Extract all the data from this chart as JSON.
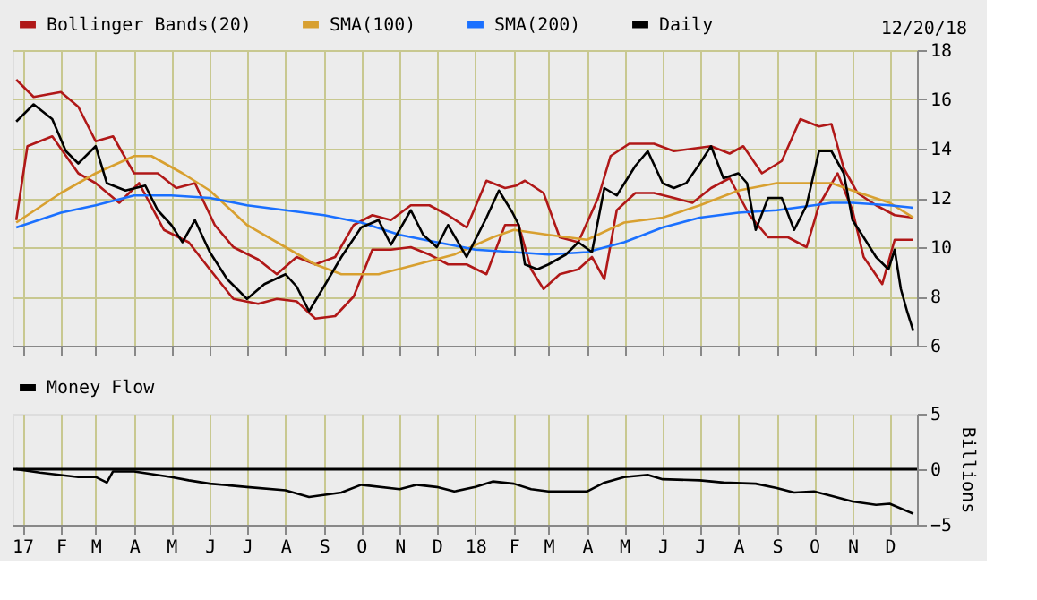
{
  "chart_data": [
    {
      "type": "line",
      "annotations": [
        "12/20/18"
      ],
      "legend": "top",
      "grid": true,
      "tick_labels": "y",
      "xlim": [
        "2016-12-24",
        "2018-12-23"
      ],
      "ylim": [
        6,
        18
      ],
      "yticks": [
        6,
        8,
        10,
        12,
        14,
        16,
        18
      ],
      "xticks": [
        {
          "value": "2017-01-01",
          "label": null
        },
        {
          "value": "2017-02-01",
          "label": null
        },
        {
          "value": "2017-03-01",
          "label": null
        },
        {
          "value": "2017-04-01",
          "label": null
        },
        {
          "value": "2017-05-01",
          "label": null
        },
        {
          "value": "2017-06-01",
          "label": null
        },
        {
          "value": "2017-07-01",
          "label": null
        },
        {
          "value": "2017-08-01",
          "label": null
        },
        {
          "value": "2017-09-01",
          "label": null
        },
        {
          "value": "2017-10-01",
          "label": null
        },
        {
          "value": "2017-11-01",
          "label": null
        },
        {
          "value": "2017-12-01",
          "label": null
        },
        {
          "value": "2018-01-01",
          "label": null
        },
        {
          "value": "2018-02-01",
          "label": null
        },
        {
          "value": "2018-03-01",
          "label": null
        },
        {
          "value": "2018-04-01",
          "label": null
        },
        {
          "value": "2018-05-01",
          "label": null
        },
        {
          "value": "2018-06-01",
          "label": null
        },
        {
          "value": "2018-07-01",
          "label": null
        },
        {
          "value": "2018-08-01",
          "label": null
        },
        {
          "value": "2018-09-01",
          "label": null
        },
        {
          "value": "2018-10-01",
          "label": null
        },
        {
          "value": "2018-11-01",
          "label": null
        },
        {
          "value": "2018-12-01",
          "label": null
        }
      ],
      "series": [
        {
          "name": "Bollinger Bands(20)",
          "color": "#b01818",
          "x": [
            "2016-12-27",
            "2017-01-10",
            "2017-02-01",
            "2017-02-15",
            "2017-03-01",
            "2017-03-15",
            "2017-04-01",
            "2017-04-20",
            "2017-05-05",
            "2017-05-20",
            "2017-06-05",
            "2017-06-20",
            "2017-07-10",
            "2017-07-25",
            "2017-08-10",
            "2017-08-25",
            "2017-09-10",
            "2017-09-25",
            "2017-10-10",
            "2017-10-25",
            "2017-11-10",
            "2017-11-25",
            "2017-12-10",
            "2017-12-25",
            "2018-01-10",
            "2018-01-25",
            "2018-02-03",
            "2018-02-10",
            "2018-02-25",
            "2018-03-10",
            "2018-03-25",
            "2018-04-10",
            "2018-04-20",
            "2018-05-05",
            "2018-05-25",
            "2018-06-10",
            "2018-06-25",
            "2018-07-10",
            "2018-07-25",
            "2018-08-05",
            "2018-08-20",
            "2018-09-05",
            "2018-09-20",
            "2018-10-05",
            "2018-10-15",
            "2018-10-25",
            "2018-11-05",
            "2018-11-20",
            "2018-12-05",
            "2018-12-20"
          ],
          "values": [
            16.8,
            16.1,
            16.3,
            15.7,
            14.3,
            14.5,
            13.0,
            13.0,
            12.4,
            12.6,
            10.9,
            10.0,
            9.5,
            8.9,
            9.6,
            9.3,
            9.6,
            10.9,
            11.3,
            11.1,
            11.7,
            11.7,
            11.3,
            10.8,
            12.7,
            12.4,
            12.5,
            12.7,
            12.2,
            10.4,
            10.2,
            12.0,
            13.7,
            14.2,
            14.2,
            13.9,
            14.0,
            14.1,
            13.8,
            14.1,
            13.0,
            13.5,
            15.2,
            14.9,
            15.0,
            13.2,
            12.2,
            11.7,
            11.3,
            11.2
          ]
        },
        {
          "color": "#b01818",
          "x": [
            "2016-12-27",
            "2017-01-05",
            "2017-01-25",
            "2017-02-15",
            "2017-03-01",
            "2017-03-20",
            "2017-04-05",
            "2017-04-25",
            "2017-05-15",
            "2017-06-01",
            "2017-06-20",
            "2017-07-10",
            "2017-07-25",
            "2017-08-10",
            "2017-08-25",
            "2017-09-10",
            "2017-09-25",
            "2017-10-10",
            "2017-10-25",
            "2017-11-10",
            "2017-11-25",
            "2017-12-10",
            "2017-12-25",
            "2018-01-10",
            "2018-01-25",
            "2018-02-05",
            "2018-02-15",
            "2018-02-25",
            "2018-03-10",
            "2018-03-25",
            "2018-04-05",
            "2018-04-15",
            "2018-04-25",
            "2018-05-10",
            "2018-05-25",
            "2018-06-10",
            "2018-06-25",
            "2018-07-10",
            "2018-07-25",
            "2018-08-10",
            "2018-08-25",
            "2018-09-10",
            "2018-09-25",
            "2018-10-05",
            "2018-10-20",
            "2018-11-01",
            "2018-11-10",
            "2018-11-25",
            "2018-12-05",
            "2018-12-20"
          ],
          "values": [
            11.1,
            14.1,
            14.5,
            13.0,
            12.6,
            11.8,
            12.6,
            10.7,
            10.2,
            9.1,
            7.9,
            7.7,
            7.9,
            7.8,
            7.1,
            7.2,
            8.0,
            9.9,
            9.9,
            10.0,
            9.7,
            9.3,
            9.3,
            8.9,
            10.9,
            10.9,
            9.1,
            8.3,
            8.9,
            9.1,
            9.6,
            8.7,
            11.5,
            12.2,
            12.2,
            12.0,
            11.8,
            12.4,
            12.8,
            11.3,
            10.4,
            10.4,
            10.0,
            11.7,
            13.0,
            11.5,
            9.6,
            8.5,
            10.3,
            10.3
          ]
        },
        {
          "name": "SMA(100)",
          "color": "#d8a030",
          "x": [
            "2016-12-27",
            "2017-02-01",
            "2017-03-01",
            "2017-04-01",
            "2017-04-15",
            "2017-05-10",
            "2017-06-01",
            "2017-07-01",
            "2017-08-01",
            "2017-08-25",
            "2017-09-15",
            "2017-10-15",
            "2017-11-15",
            "2017-12-15",
            "2018-01-15",
            "2018-02-01",
            "2018-03-01",
            "2018-04-01",
            "2018-05-01",
            "2018-06-01",
            "2018-07-01",
            "2018-08-01",
            "2018-09-01",
            "2018-10-01",
            "2018-10-15",
            "2018-11-01",
            "2018-12-01",
            "2018-12-20"
          ],
          "values": [
            11.0,
            12.2,
            13.0,
            13.7,
            13.7,
            13.0,
            12.3,
            10.9,
            10.0,
            9.3,
            8.9,
            8.9,
            9.3,
            9.7,
            10.4,
            10.7,
            10.5,
            10.3,
            11.0,
            11.2,
            11.7,
            12.3,
            12.6,
            12.6,
            12.6,
            12.3,
            11.8,
            11.2
          ]
        },
        {
          "name": "SMA(200)",
          "color": "#1a70ff",
          "x": [
            "2016-12-27",
            "2017-02-01",
            "2017-03-01",
            "2017-04-01",
            "2017-05-01",
            "2017-06-01",
            "2017-07-01",
            "2017-08-01",
            "2017-09-01",
            "2017-10-01",
            "2017-11-01",
            "2017-12-01",
            "2018-01-01",
            "2018-02-01",
            "2018-03-01",
            "2018-04-01",
            "2018-05-01",
            "2018-06-01",
            "2018-07-01",
            "2018-08-01",
            "2018-09-01",
            "2018-10-01",
            "2018-10-15",
            "2018-11-01",
            "2018-12-01",
            "2018-12-20"
          ],
          "values": [
            10.8,
            11.4,
            11.7,
            12.1,
            12.1,
            12.0,
            11.7,
            11.5,
            11.3,
            11.0,
            10.5,
            10.2,
            9.9,
            9.8,
            9.7,
            9.8,
            10.2,
            10.8,
            11.2,
            11.4,
            11.5,
            11.7,
            11.8,
            11.8,
            11.7,
            11.6
          ]
        },
        {
          "name": "Daily",
          "color": "#000000",
          "x": [
            "2016-12-27",
            "2017-01-10",
            "2017-01-25",
            "2017-02-05",
            "2017-02-15",
            "2017-03-01",
            "2017-03-10",
            "2017-03-25",
            "2017-04-10",
            "2017-04-20",
            "2017-05-01",
            "2017-05-10",
            "2017-05-20",
            "2017-06-01",
            "2017-06-15",
            "2017-07-01",
            "2017-07-15",
            "2017-08-01",
            "2017-08-10",
            "2017-08-20",
            "2017-09-01",
            "2017-09-15",
            "2017-10-01",
            "2017-10-15",
            "2017-10-25",
            "2017-11-10",
            "2017-11-20",
            "2017-12-01",
            "2017-12-10",
            "2017-12-25",
            "2018-01-10",
            "2018-01-20",
            "2018-01-31",
            "2018-02-05",
            "2018-02-10",
            "2018-02-20",
            "2018-03-01",
            "2018-03-15",
            "2018-03-25",
            "2018-04-05",
            "2018-04-15",
            "2018-04-25",
            "2018-05-10",
            "2018-05-20",
            "2018-06-01",
            "2018-06-10",
            "2018-06-20",
            "2018-07-01",
            "2018-07-10",
            "2018-07-20",
            "2018-08-01",
            "2018-08-08",
            "2018-08-15",
            "2018-08-25",
            "2018-09-05",
            "2018-09-15",
            "2018-09-25",
            "2018-10-05",
            "2018-10-15",
            "2018-10-25",
            "2018-11-01",
            "2018-11-10",
            "2018-11-20",
            "2018-11-30",
            "2018-12-05",
            "2018-12-10",
            "2018-12-15",
            "2018-12-20"
          ],
          "values": [
            15.1,
            15.8,
            15.2,
            13.9,
            13.4,
            14.1,
            12.6,
            12.3,
            12.5,
            11.5,
            10.9,
            10.2,
            11.1,
            9.8,
            8.7,
            7.9,
            8.5,
            8.9,
            8.4,
            7.4,
            8.4,
            9.6,
            10.8,
            11.1,
            10.1,
            11.5,
            10.5,
            10.0,
            10.9,
            9.6,
            11.2,
            12.3,
            11.4,
            10.9,
            9.3,
            9.1,
            9.3,
            9.7,
            10.2,
            9.8,
            12.4,
            12.1,
            13.3,
            13.9,
            12.6,
            12.4,
            12.6,
            13.4,
            14.1,
            12.8,
            13.0,
            12.6,
            10.7,
            12.0,
            12.0,
            10.7,
            11.7,
            13.9,
            13.9,
            13.0,
            11.1,
            10.4,
            9.6,
            9.1,
            9.9,
            8.3,
            7.4,
            6.6
          ]
        }
      ]
    },
    {
      "type": "line",
      "ylabel": "Billions",
      "legend": "top",
      "grid": "x",
      "xlim": [
        "2016-12-24",
        "2018-12-23"
      ],
      "ylim": [
        -5,
        5
      ],
      "yticks": [
        -5,
        0,
        5
      ],
      "ref_lines": [
        {
          "axis": "y",
          "value": 0,
          "color": "#000000"
        }
      ],
      "xticks": [
        {
          "value": "2017-01-01",
          "label": "17"
        },
        {
          "value": "2017-02-01",
          "label": "F"
        },
        {
          "value": "2017-03-01",
          "label": "M"
        },
        {
          "value": "2017-04-01",
          "label": "A"
        },
        {
          "value": "2017-05-01",
          "label": "M"
        },
        {
          "value": "2017-06-01",
          "label": "J"
        },
        {
          "value": "2017-07-01",
          "label": "J"
        },
        {
          "value": "2017-08-01",
          "label": "A"
        },
        {
          "value": "2017-09-01",
          "label": "S"
        },
        {
          "value": "2017-10-01",
          "label": "O"
        },
        {
          "value": "2017-11-01",
          "label": "N"
        },
        {
          "value": "2017-12-01",
          "label": "D"
        },
        {
          "value": "2018-01-01",
          "label": "18"
        },
        {
          "value": "2018-02-01",
          "label": "F"
        },
        {
          "value": "2018-03-01",
          "label": "M"
        },
        {
          "value": "2018-04-01",
          "label": "A"
        },
        {
          "value": "2018-05-01",
          "label": "M"
        },
        {
          "value": "2018-06-01",
          "label": "J"
        },
        {
          "value": "2018-07-01",
          "label": "J"
        },
        {
          "value": "2018-08-01",
          "label": "A"
        },
        {
          "value": "2018-09-01",
          "label": "S"
        },
        {
          "value": "2018-10-01",
          "label": "O"
        },
        {
          "value": "2018-11-01",
          "label": "N"
        },
        {
          "value": "2018-12-01",
          "label": "D"
        }
      ],
      "series": [
        {
          "name": "Money Flow",
          "color": "#000000",
          "x": [
            "2016-12-27",
            "2017-01-15",
            "2017-02-15",
            "2017-03-01",
            "2017-03-10",
            "2017-03-15",
            "2017-04-01",
            "2017-05-01",
            "2017-05-15",
            "2017-06-01",
            "2017-07-01",
            "2017-08-01",
            "2017-08-20",
            "2017-09-15",
            "2017-10-01",
            "2017-11-01",
            "2017-11-15",
            "2017-12-01",
            "2017-12-15",
            "2018-01-01",
            "2018-01-15",
            "2018-02-01",
            "2018-02-15",
            "2018-03-01",
            "2018-04-01",
            "2018-04-15",
            "2018-05-01",
            "2018-05-20",
            "2018-06-01",
            "2018-07-01",
            "2018-07-20",
            "2018-08-15",
            "2018-09-01",
            "2018-09-15",
            "2018-10-01",
            "2018-10-15",
            "2018-11-01",
            "2018-11-20",
            "2018-12-01",
            "2018-12-20"
          ],
          "values": [
            0,
            -0.3,
            -0.7,
            -0.7,
            -1.2,
            -0.2,
            -0.2,
            -0.7,
            -1.0,
            -1.3,
            -1.6,
            -1.9,
            -2.5,
            -2.1,
            -1.4,
            -1.8,
            -1.4,
            -1.6,
            -2.0,
            -1.6,
            -1.1,
            -1.3,
            -1.8,
            -2.0,
            -2.0,
            -1.2,
            -0.7,
            -0.5,
            -0.9,
            -1.0,
            -1.2,
            -1.3,
            -1.7,
            -2.1,
            -2.0,
            -2.4,
            -2.9,
            -3.2,
            -3.1,
            -4.0
          ]
        }
      ]
    }
  ]
}
